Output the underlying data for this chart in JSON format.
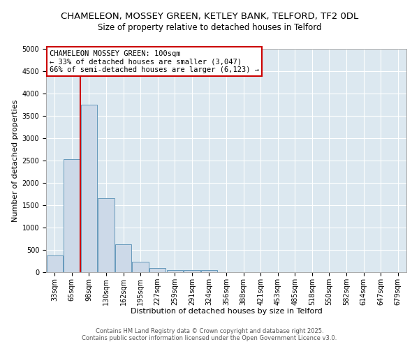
{
  "title1": "CHAMELEON, MOSSEY GREEN, KETLEY BANK, TELFORD, TF2 0DL",
  "title2": "Size of property relative to detached houses in Telford",
  "xlabel": "Distribution of detached houses by size in Telford",
  "ylabel": "Number of detached properties",
  "bar_color": "#ccd9e8",
  "bar_edge_color": "#6699bb",
  "background_color": "#dce8f0",
  "categories": [
    "33sqm",
    "65sqm",
    "98sqm",
    "130sqm",
    "162sqm",
    "195sqm",
    "227sqm",
    "259sqm",
    "291sqm",
    "324sqm",
    "356sqm",
    "388sqm",
    "421sqm",
    "453sqm",
    "485sqm",
    "518sqm",
    "550sqm",
    "582sqm",
    "614sqm",
    "647sqm",
    "679sqm"
  ],
  "values": [
    375,
    2525,
    3750,
    1650,
    620,
    230,
    100,
    50,
    50,
    50,
    0,
    0,
    0,
    0,
    0,
    0,
    0,
    0,
    0,
    0,
    0
  ],
  "vline_x": 1.5,
  "vline_color": "#cc0000",
  "annotation_line1": "CHAMELEON MOSSEY GREEN: 100sqm",
  "annotation_line2": "← 33% of detached houses are smaller (3,047)",
  "annotation_line3": "66% of semi-detached houses are larger (6,123) →",
  "annotation_box_facecolor": "white",
  "annotation_border_color": "#cc0000",
  "ylim": [
    0,
    5000
  ],
  "yticks": [
    0,
    500,
    1000,
    1500,
    2000,
    2500,
    3000,
    3500,
    4000,
    4500,
    5000
  ],
  "footer1": "Contains HM Land Registry data © Crown copyright and database right 2025.",
  "footer2": "Contains public sector information licensed under the Open Government Licence v3.0.",
  "title1_fontsize": 9.5,
  "title2_fontsize": 8.5,
  "axis_label_fontsize": 8,
  "tick_fontsize": 7,
  "annotation_fontsize": 7.5,
  "footer_fontsize": 6
}
